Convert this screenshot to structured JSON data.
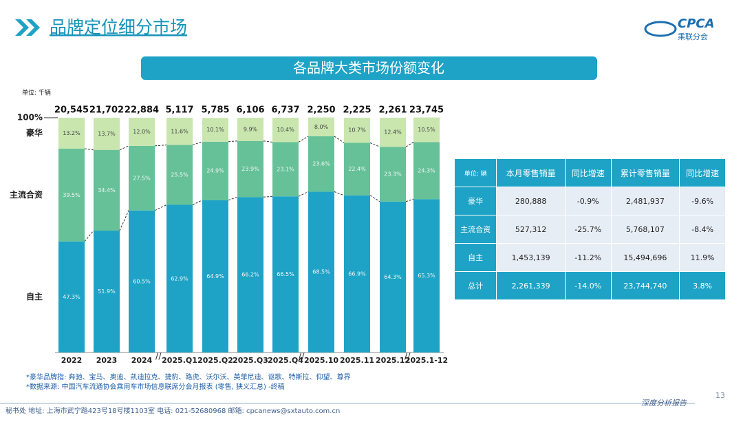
{
  "header": {
    "title": "品牌定位细分市场",
    "logo": "CPCA",
    "logo_sub": "乘联分会"
  },
  "chart_data": {
    "type": "stacked_bar",
    "title": "各品牌大类市场份额变化",
    "unit": "单位: 千辆",
    "categories": [
      "2022",
      "2023",
      "2024",
      "2025.Q1",
      "2025.Q2",
      "2025.Q3",
      "2025.Q4",
      "2025.10",
      "2025.11",
      "2025.12",
      "2025.1-12"
    ],
    "ylim": [
      0,
      100
    ],
    "yticks": [
      {
        "value": 100,
        "label": "100%"
      }
    ],
    "totals": {
      "values": [
        20545,
        21702,
        22884,
        5117,
        5785,
        6106,
        6737,
        2250,
        2225,
        2261,
        23745
      ],
      "value_labels": [
        "20,545",
        "21,702",
        "22,884",
        "5,117",
        "5,785",
        "6,106",
        "6,737",
        "2,250",
        "2,225",
        "2,261",
        "23,745"
      ]
    },
    "series": [
      {
        "name": "自主",
        "color": "#1ea3c6",
        "values": [
          47.3,
          51.9,
          60.5,
          62.9,
          64.9,
          66.2,
          66.5,
          68.5,
          66.9,
          64.3,
          65.3
        ],
        "value_labels": [
          "47.3%",
          "51.9%",
          "60.5%",
          "62.9%",
          "64.9%",
          "66.2%",
          "66.5%",
          "68.5%",
          "66.9%",
          "64.3%",
          "65.3%"
        ]
      },
      {
        "name": "主流合资",
        "color": "#66c198",
        "values": [
          39.5,
          34.4,
          27.5,
          25.5,
          24.9,
          23.9,
          23.1,
          23.6,
          22.4,
          23.3,
          24.3
        ],
        "value_labels": [
          "39.5%",
          "34.4%",
          "27.5%",
          "25.5%",
          "24.9%",
          "23.9%",
          "23.1%",
          "23.6%",
          "22.4%",
          "23.3%",
          "24.3%"
        ]
      },
      {
        "name": "豪华",
        "color": "#c8e6ae",
        "values": [
          13.2,
          13.7,
          12.0,
          11.6,
          10.1,
          9.9,
          10.4,
          8.0,
          10.7,
          12.4,
          10.5
        ],
        "value_labels": [
          "13.2%",
          "13.7%",
          "12.0%",
          "11.6%",
          "10.1%",
          "9.9%",
          "10.4%",
          "8.0%",
          "10.7%",
          "12.4%",
          "10.5%"
        ]
      }
    ]
  },
  "table": {
    "header": [
      "单位: 辆",
      "本月零售销量",
      "同比增速",
      "累计零售销量",
      "同比增速"
    ],
    "rows": [
      [
        "豪华",
        "280,888",
        "-0.9%",
        "2,481,937",
        "-9.6%"
      ],
      [
        "主流合资",
        "527,312",
        "-25.7%",
        "5,768,107",
        "-8.4%"
      ],
      [
        "自主",
        "1,453,139",
        "-11.2%",
        "15,494,696",
        "11.9%"
      ],
      [
        "总计",
        "2,261,339",
        "-14.0%",
        "23,744,740",
        "3.8%"
      ]
    ]
  },
  "notes": [
    "*豪华品牌指: 奔驰、宝马、奥迪、凯迪拉克、捷豹、路虎、沃尔沃、英菲尼迪、讴歌、特斯拉、仰望、尊界",
    "*数据来源: 中国汽车流通协会乘用车市场信息联席分会月报表 (零售, 狭义汇总) -终稿"
  ],
  "footer": {
    "address": "秘书处  地址: 上海市武宁路423号18号楼1103室  电话: 021-52680968  邮箱: cpcanews@sxtauto.com.cn",
    "report": "深度分析报告",
    "page": "13"
  }
}
